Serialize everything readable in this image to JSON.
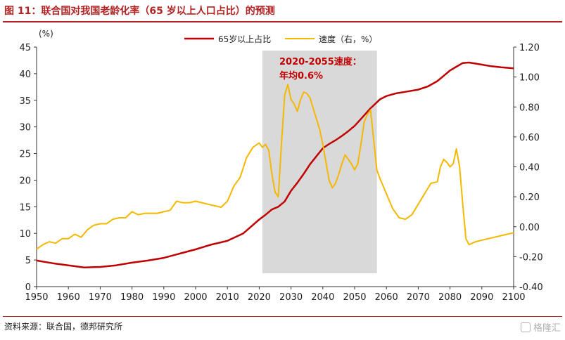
{
  "header": {
    "title": "图 11：联合国对我国老龄化率（65 岁以上人口占比）的预测"
  },
  "footer": {
    "source": "资料来源：联合国，德邦研究所",
    "watermark": "格隆汇"
  },
  "colors": {
    "primary": "#c00000",
    "secondary": "#f5b800",
    "shade": "#d9d9d9",
    "accent": "#b22222"
  },
  "chart_data": {
    "type": "line",
    "x_ticks": [
      "1950",
      "1960",
      "1970",
      "1980",
      "1990",
      "2000",
      "2010",
      "2020",
      "2030",
      "2040",
      "2050",
      "2060",
      "2070",
      "2080",
      "2090",
      "2100"
    ],
    "y_left_ticks": [
      "0",
      "5",
      "10",
      "15",
      "20",
      "25",
      "30",
      "35",
      "40",
      "45"
    ],
    "y_right_ticks": [
      "-0.40",
      "-0.20",
      "0.00",
      "0.20",
      "0.40",
      "0.60",
      "0.80",
      "1.00",
      "1.20"
    ],
    "y_left_unit": "(%)",
    "xlim": [
      1950,
      2100
    ],
    "ylim_left": [
      0,
      45
    ],
    "ylim_right": [
      -0.4,
      1.2
    ],
    "legend_position": "top",
    "shaded_region": {
      "x": [
        2021,
        2057
      ]
    },
    "annotation": {
      "line1": "2020-2055速度：",
      "line2": "年均0.6%"
    },
    "series": [
      {
        "name": "65岁以上占比",
        "axis": "left",
        "color": "#c00000",
        "x": [
          1950,
          1955,
          1960,
          1965,
          1970,
          1975,
          1980,
          1985,
          1990,
          1995,
          2000,
          2005,
          2010,
          2015,
          2020,
          2022,
          2024,
          2026,
          2028,
          2030,
          2032,
          2034,
          2036,
          2038,
          2040,
          2042,
          2044,
          2046,
          2048,
          2050,
          2052,
          2055,
          2058,
          2060,
          2063,
          2066,
          2070,
          2073,
          2076,
          2078,
          2080,
          2082,
          2084,
          2086,
          2088,
          2090,
          2093,
          2096,
          2100
        ],
        "y": [
          4.9,
          4.4,
          4.0,
          3.6,
          3.7,
          4.0,
          4.5,
          4.9,
          5.4,
          6.2,
          7.0,
          7.9,
          8.6,
          10.0,
          12.6,
          13.5,
          14.5,
          15.0,
          16.0,
          18.0,
          19.5,
          21.2,
          23.0,
          24.5,
          26.0,
          26.8,
          27.5,
          28.3,
          29.2,
          30.2,
          31.5,
          33.5,
          35.2,
          35.8,
          36.3,
          36.6,
          37.0,
          37.6,
          38.6,
          39.6,
          40.6,
          41.3,
          42.0,
          42.1,
          41.9,
          41.7,
          41.4,
          41.2,
          41.0
        ]
      },
      {
        "name": "速度（右，%）",
        "axis": "right",
        "color": "#f5b800",
        "x": [
          1950,
          1952,
          1954,
          1956,
          1958,
          1960,
          1962,
          1964,
          1966,
          1968,
          1970,
          1972,
          1974,
          1976,
          1978,
          1980,
          1982,
          1984,
          1986,
          1988,
          1990,
          1992,
          1994,
          1996,
          1998,
          2000,
          2002,
          2004,
          2006,
          2008,
          2010,
          2012,
          2014,
          2016,
          2018,
          2020,
          2021,
          2022,
          2023,
          2024,
          2025,
          2026,
          2027,
          2028,
          2029,
          2030,
          2031,
          2032,
          2033,
          2034,
          2035,
          2036,
          2037,
          2038,
          2039,
          2040,
          2041,
          2042,
          2043,
          2044,
          2045,
          2046,
          2047,
          2048,
          2049,
          2050,
          2051,
          2052,
          2053,
          2054,
          2055,
          2056,
          2057,
          2058,
          2060,
          2062,
          2064,
          2066,
          2068,
          2070,
          2072,
          2074,
          2076,
          2077,
          2078,
          2079,
          2080,
          2081,
          2082,
          2083,
          2084,
          2085,
          2086,
          2087,
          2088,
          2090,
          2092,
          2094,
          2096,
          2098,
          2100
        ],
        "y": [
          -0.15,
          -0.12,
          -0.1,
          -0.11,
          -0.08,
          -0.08,
          -0.05,
          -0.07,
          -0.02,
          0.01,
          0.02,
          0.02,
          0.05,
          0.06,
          0.06,
          0.1,
          0.08,
          0.09,
          0.09,
          0.09,
          0.1,
          0.11,
          0.17,
          0.16,
          0.16,
          0.17,
          0.16,
          0.15,
          0.14,
          0.13,
          0.17,
          0.27,
          0.33,
          0.46,
          0.53,
          0.56,
          0.53,
          0.55,
          0.51,
          0.35,
          0.23,
          0.2,
          0.55,
          0.88,
          0.95,
          0.85,
          0.82,
          0.77,
          0.85,
          0.9,
          0.89,
          0.86,
          0.79,
          0.72,
          0.65,
          0.55,
          0.43,
          0.31,
          0.26,
          0.29,
          0.35,
          0.42,
          0.48,
          0.45,
          0.42,
          0.38,
          0.42,
          0.55,
          0.7,
          0.75,
          0.78,
          0.58,
          0.38,
          0.32,
          0.22,
          0.12,
          0.06,
          0.05,
          0.08,
          0.15,
          0.22,
          0.29,
          0.3,
          0.4,
          0.45,
          0.43,
          0.4,
          0.42,
          0.52,
          0.4,
          0.15,
          -0.08,
          -0.12,
          -0.11,
          -0.1,
          -0.09,
          -0.08,
          -0.07,
          -0.06,
          -0.05,
          -0.04
        ]
      }
    ]
  }
}
